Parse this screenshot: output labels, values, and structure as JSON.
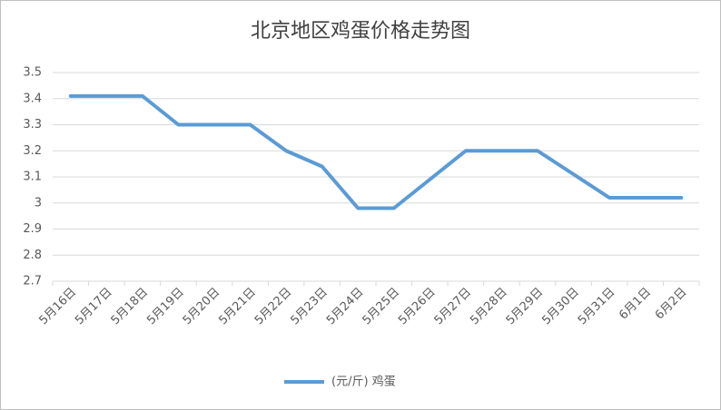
{
  "chart_data": {
    "type": "line",
    "title": "北京地区鸡蛋价格走势图",
    "categories": [
      "5月16日",
      "5月17日",
      "5月18日",
      "5月19日",
      "5月20日",
      "5月21日",
      "5月22日",
      "5月23日",
      "5月24日",
      "5月25日",
      "5月26日",
      "5月27日",
      "5月28日",
      "5月29日",
      "5月30日",
      "5月31日",
      "6月1日",
      "6月2日"
    ],
    "series": [
      {
        "name": "(元/斤) 鸡蛋",
        "color": "#5b9bd5",
        "values": [
          3.41,
          3.41,
          3.41,
          3.3,
          3.3,
          3.3,
          3.2,
          3.14,
          2.98,
          2.98,
          3.09,
          3.2,
          3.2,
          3.2,
          3.11,
          3.02,
          3.02,
          3.02
        ]
      }
    ],
    "ylim": [
      2.7,
      3.5
    ],
    "yticks": [
      2.7,
      2.8,
      2.9,
      3,
      3.1,
      3.2,
      3.3,
      3.4,
      3.5
    ],
    "grid": true,
    "legend": "bottom"
  }
}
